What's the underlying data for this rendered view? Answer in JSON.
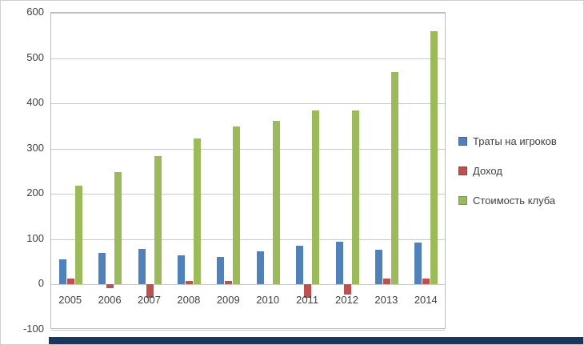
{
  "chart_data": {
    "type": "bar",
    "title": "",
    "xlabel": "",
    "ylabel": "",
    "categories": [
      "2005",
      "2006",
      "2007",
      "2008",
      "2009",
      "2010",
      "2011",
      "2012",
      "2013",
      "2014"
    ],
    "series": [
      {
        "name": "Траты на игроков",
        "color": "#4f81bd",
        "values": [
          55,
          70,
          79,
          64,
          61,
          73,
          86,
          95,
          76,
          92
        ]
      },
      {
        "name": "Доход",
        "color": "#c0504d",
        "values": [
          13,
          -8,
          -30,
          7,
          8,
          0,
          -30,
          -22,
          14,
          14
        ]
      },
      {
        "name": "Стоимость клуба",
        "color": "#9bbb59",
        "values": [
          218,
          248,
          283,
          322,
          349,
          361,
          385,
          385,
          470,
          560
        ]
      }
    ],
    "ylim": [
      -100,
      600
    ],
    "ytick_interval": 100,
    "grid": true,
    "legend_position": "right"
  },
  "legend": {
    "items": [
      {
        "label": "Траты на игроков",
        "color": "#4f81bd"
      },
      {
        "label": "Доход",
        "color": "#c0504d"
      },
      {
        "label": "Стоимость клуба",
        "color": "#9bbb59"
      }
    ]
  },
  "colors": {
    "gridline": "#c9c9c9",
    "axis_text": "#3f3f3f",
    "window_edge": "#17375e",
    "background": "#ffffff"
  }
}
